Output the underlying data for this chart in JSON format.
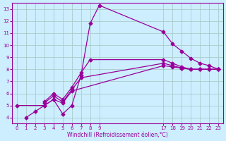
{
  "title": "",
  "xlabel": "Windchill (Refroidissement éolien,°C)",
  "bg_color": "#cceeff",
  "line_color": "#990099",
  "grid_color": "#aacccc",
  "xlim": [
    -0.5,
    23.5
  ],
  "ylim": [
    3.5,
    13.5
  ],
  "xtick_vals": [
    0,
    1,
    2,
    3,
    4,
    5,
    6,
    7,
    8,
    9,
    17,
    18,
    19,
    20,
    21,
    22,
    23
  ],
  "xtick_pos": [
    0,
    1,
    2,
    3,
    4,
    5,
    6,
    7,
    8,
    9,
    16,
    17,
    18,
    19,
    20,
    21,
    22
  ],
  "yticks": [
    4,
    5,
    6,
    7,
    8,
    9,
    10,
    11,
    12,
    13
  ],
  "lines": [
    {
      "xv": [
        1,
        2,
        3,
        4,
        5,
        6,
        7,
        8,
        9,
        17,
        18,
        19,
        20,
        21,
        22,
        23
      ],
      "y": [
        4.0,
        4.5,
        5.0,
        5.5,
        4.3,
        5.0,
        7.5,
        11.8,
        13.3,
        11.1,
        10.1,
        9.5,
        8.9,
        8.5,
        8.3,
        8.0
      ]
    },
    {
      "xv": [
        0,
        3,
        4,
        5,
        6,
        17,
        18,
        19,
        20,
        21,
        22,
        23
      ],
      "y": [
        5.0,
        5.0,
        5.5,
        5.2,
        6.2,
        8.3,
        8.2,
        8.1,
        8.0,
        8.0,
        8.0,
        8.0
      ]
    },
    {
      "xv": [
        3,
        4,
        5,
        6,
        7,
        17,
        18,
        19,
        20,
        21,
        22,
        23
      ],
      "y": [
        5.2,
        5.8,
        5.3,
        6.3,
        7.3,
        8.5,
        8.3,
        8.1,
        8.0,
        8.0,
        8.0,
        8.0
      ]
    },
    {
      "xv": [
        3,
        4,
        5,
        6,
        7,
        8,
        17,
        18,
        19,
        20,
        21,
        22,
        23
      ],
      "y": [
        5.3,
        6.0,
        5.5,
        6.5,
        7.7,
        8.8,
        8.8,
        8.5,
        8.2,
        8.0,
        8.0,
        8.0,
        8.0
      ]
    }
  ]
}
